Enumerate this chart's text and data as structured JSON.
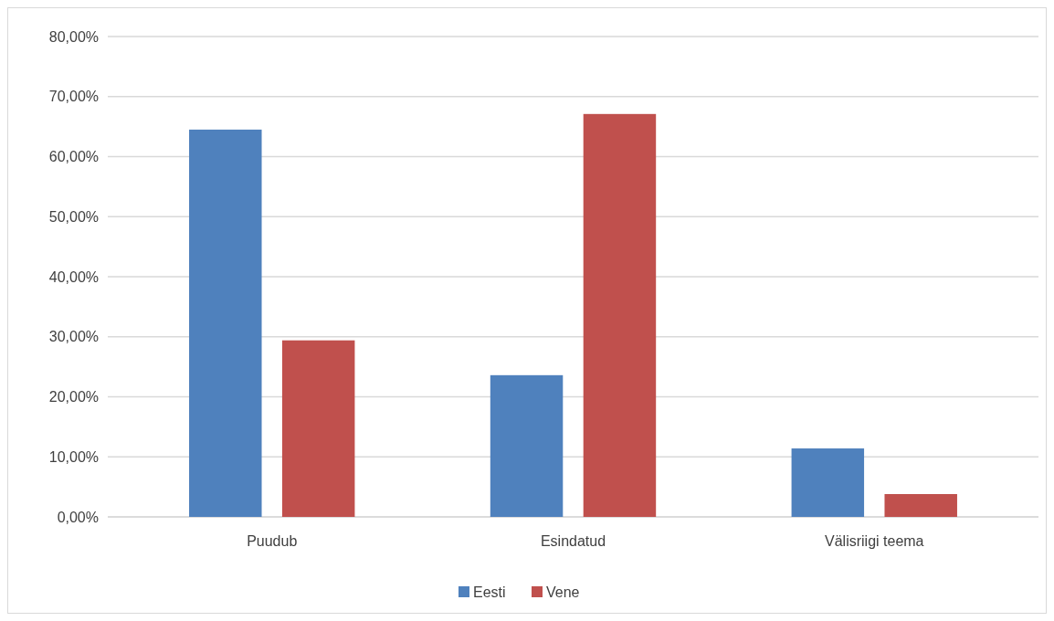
{
  "chart_data": {
    "type": "bar",
    "categories": [
      "Puudub",
      "Esindatud",
      "Välisriigi teema"
    ],
    "series": [
      {
        "name": "Eesti",
        "color": "#4f81bd",
        "values": [
          64.5,
          23.6,
          11.4
        ]
      },
      {
        "name": "Vene",
        "color": "#c0504d",
        "values": [
          29.4,
          67.1,
          3.8
        ]
      }
    ],
    "ylim": [
      0,
      80
    ],
    "yticks": [
      {
        "value": 0,
        "label": "0,00%"
      },
      {
        "value": 10,
        "label": "10,00%"
      },
      {
        "value": 20,
        "label": "20,00%"
      },
      {
        "value": 30,
        "label": "30,00%"
      },
      {
        "value": 40,
        "label": "40,00%"
      },
      {
        "value": 50,
        "label": "50,00%"
      },
      {
        "value": 60,
        "label": "60,00%"
      },
      {
        "value": 70,
        "label": "70,00%"
      },
      {
        "value": 80,
        "label": "80,00%"
      }
    ],
    "grid": "y",
    "legend": "bottom"
  }
}
